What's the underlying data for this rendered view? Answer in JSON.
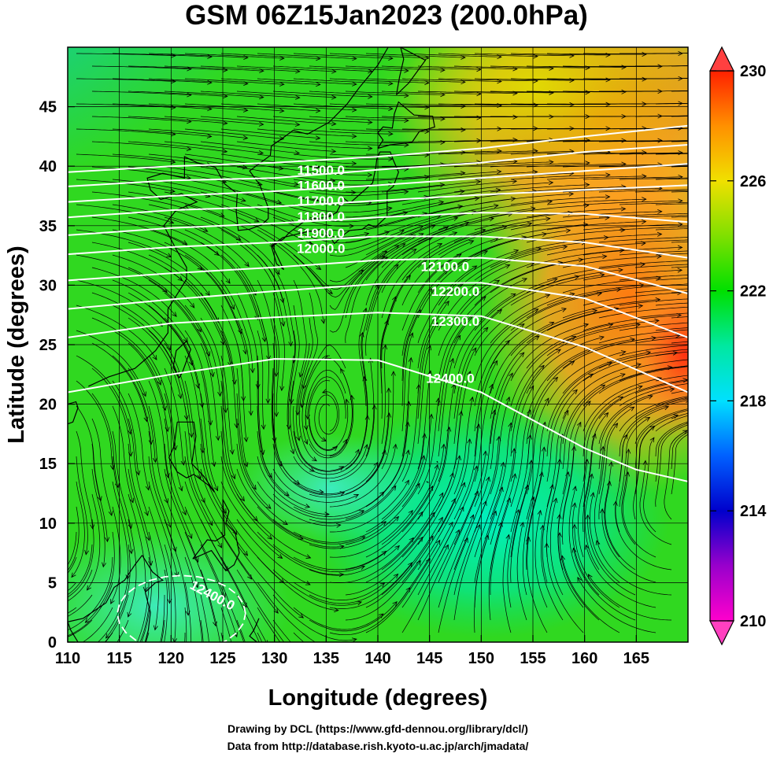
{
  "title": "GSM 06Z15Jan2023 (200.0hPa)",
  "xlabel": "Longitude (degrees)",
  "ylabel": "Latitude  (degrees)",
  "credits": [
    "Drawing by DCL (https://www.gfd-dennou.org/library/dcl/)",
    "Data from http://database.rish.kyoto-u.ac.jp/arch/jmadata/"
  ],
  "chart_data": {
    "type": "heatmap",
    "title": "GSM 06Z15Jan2023 (200.0hPa)",
    "xlabel": "Longitude (degrees)",
    "ylabel": "Latitude  (degrees)",
    "xlim": [
      110,
      170
    ],
    "ylim": [
      0,
      50
    ],
    "x_ticks": [
      110,
      115,
      120,
      125,
      130,
      135,
      140,
      145,
      150,
      155,
      160,
      165
    ],
    "y_ticks": [
      0,
      5,
      10,
      15,
      20,
      25,
      30,
      35,
      40,
      45
    ],
    "grid": true,
    "colorbar": {
      "range": [
        210,
        230
      ],
      "tick_values": [
        210,
        214,
        218,
        222,
        226,
        230
      ],
      "colors": [
        "#ff00cc",
        "#9900cc",
        "#0000cc",
        "#0060ff",
        "#00e0ff",
        "#00e8a0",
        "#00e000",
        "#80e000",
        "#f0e000",
        "#ff9000",
        "#ff2000"
      ],
      "extend": "both"
    },
    "contours": {
      "color": "#ffffff",
      "levels": [
        {
          "label": "11500.0",
          "value": 11500
        },
        {
          "label": "11600.0",
          "value": 11600
        },
        {
          "label": "11700.0",
          "value": 11700
        },
        {
          "label": "11800.0",
          "value": 11800
        },
        {
          "label": "11900.0",
          "value": 11900
        },
        {
          "label": "12000.0",
          "value": 12000
        },
        {
          "label": "12100.0",
          "value": 12100
        },
        {
          "label": "12200.0",
          "value": 12200
        },
        {
          "label": "12300.0",
          "value": 12300
        },
        {
          "label": "12400.0",
          "value": 12400
        }
      ],
      "extra_labels": [
        {
          "label": "12400.0",
          "value": 12400
        }
      ]
    },
    "streamlines": {
      "color": "#000000",
      "prevailing_flow": "west-to-east",
      "anticyclone_center": [
        135,
        17
      ]
    }
  }
}
